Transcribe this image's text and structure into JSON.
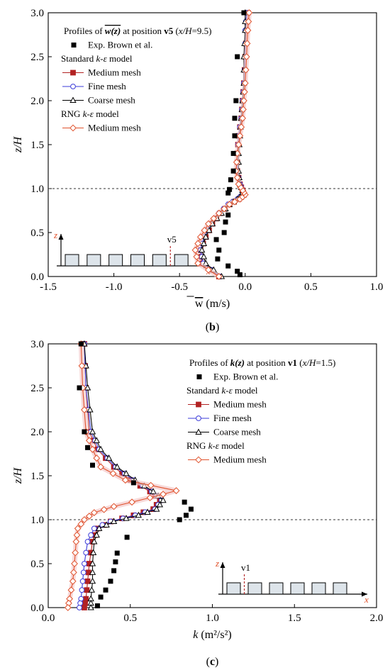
{
  "colors": {
    "standard_medium": "#b22222",
    "standard_fine": "#3b3bd9",
    "standard_coarse": "#000000",
    "rng_medium": "#e0522c",
    "experiment": "#000000",
    "sheet_fill": "#f4c9c9",
    "building_fill": "#dde4ea"
  },
  "chart_data": [
    {
      "panel_label": "(b)",
      "type": "line",
      "orientation": "profile: z/H vertical, quantity horizontal",
      "title_parts": [
        "Profiles of ",
        "w(z)",
        " at position ",
        "v5",
        " (",
        "x/H",
        "=9.5)"
      ],
      "xlabel": "w (m/s)",
      "xlabel_var": "w",
      "xlabel_unit": " (m/s)",
      "ylabel": "z/H",
      "xlim": [
        -1.5,
        1.0
      ],
      "ylim": [
        0.0,
        3.0
      ],
      "xticks": [
        -1.5,
        -1.0,
        -0.5,
        0.0,
        0.5,
        1.0
      ],
      "xtick_labels": [
        "-1.5",
        "-1.0",
        "-0.5",
        "0.0",
        "0.5",
        "1.0"
      ],
      "yticks": [
        0.0,
        0.5,
        1.0,
        1.5,
        2.0,
        2.5,
        3.0
      ],
      "ytick_labels": [
        "0.0",
        "0.5",
        "1.0",
        "1.5",
        "2.0",
        "2.5",
        "3.0"
      ],
      "reference_line_y": 1.0,
      "legend_position": "top-left",
      "legend": {
        "experiment": "Exp. Brown et al.",
        "group_standard": [
          "Standard ",
          "k-ε",
          " model"
        ],
        "group_rng": [
          "RNG ",
          "k-ε",
          " model"
        ],
        "entries": [
          "Medium mesh",
          "Fine mesh",
          "Coarse mesh",
          "Medium mesh"
        ]
      },
      "inset": {
        "x_label": "x",
        "z_label": "z",
        "position_label": "v5",
        "buildings": 6,
        "probe_after_building": 5
      },
      "experiment": {
        "name": "Exp. Brown et al.",
        "x": [
          -0.01,
          -0.06,
          -0.07,
          -0.08,
          -0.08,
          -0.09,
          -0.09,
          -0.11,
          -0.12,
          -0.13,
          -0.13,
          -0.15,
          -0.16,
          -0.22,
          -0.2,
          -0.21,
          -0.13,
          -0.06,
          -0.04
        ],
        "y": [
          3.0,
          2.5,
          2.0,
          1.8,
          1.6,
          1.4,
          1.2,
          1.1,
          0.99,
          0.95,
          0.7,
          0.62,
          0.5,
          0.42,
          0.3,
          0.2,
          0.12,
          0.06,
          0.02
        ]
      },
      "series": [
        {
          "name": "Medium mesh",
          "group": "Standard k-ε model",
          "marker": "square",
          "x": [
            -0.2,
            -0.33,
            -0.34,
            -0.3,
            -0.25,
            -0.19,
            -0.12,
            -0.05,
            -0.01,
            -0.02,
            -0.04,
            -0.06,
            -0.06,
            -0.05,
            -0.03,
            -0.02,
            -0.01,
            0.0,
            0.01,
            0.02
          ],
          "y": [
            0.0,
            0.15,
            0.3,
            0.45,
            0.6,
            0.72,
            0.82,
            0.88,
            0.93,
            0.98,
            1.05,
            1.2,
            1.4,
            1.6,
            1.8,
            2.0,
            2.2,
            2.5,
            2.8,
            3.0
          ]
        },
        {
          "name": "Fine mesh",
          "group": "Standard k-ε model",
          "marker": "circle",
          "x": [
            -0.19,
            -0.32,
            -0.34,
            -0.31,
            -0.26,
            -0.2,
            -0.13,
            -0.06,
            -0.02,
            -0.02,
            -0.04,
            -0.06,
            -0.06,
            -0.05,
            -0.03,
            -0.02,
            -0.01,
            0.0,
            0.0,
            0.01
          ],
          "y": [
            0.0,
            0.15,
            0.3,
            0.45,
            0.6,
            0.72,
            0.82,
            0.88,
            0.93,
            0.98,
            1.05,
            1.2,
            1.4,
            1.6,
            1.8,
            2.0,
            2.2,
            2.5,
            2.8,
            3.0
          ]
        },
        {
          "name": "Coarse mesh",
          "group": "Standard k-ε model",
          "marker": "triangle",
          "x": [
            -0.18,
            -0.3,
            -0.33,
            -0.3,
            -0.25,
            -0.18,
            -0.12,
            -0.06,
            -0.02,
            -0.02,
            -0.04,
            -0.05,
            -0.05,
            -0.04,
            -0.03,
            -0.02,
            -0.01,
            -0.01,
            0.0,
            0.0
          ],
          "y": [
            0.0,
            0.15,
            0.3,
            0.45,
            0.6,
            0.72,
            0.82,
            0.88,
            0.93,
            0.98,
            1.05,
            1.2,
            1.4,
            1.6,
            1.8,
            2.0,
            2.2,
            2.5,
            2.8,
            3.0
          ]
        },
        {
          "name": "Medium mesh",
          "group": "RNG k-ε model",
          "marker": "diamond",
          "x": [
            -0.2,
            -0.36,
            -0.38,
            -0.34,
            -0.28,
            -0.2,
            -0.12,
            -0.04,
            0.0,
            -0.02,
            -0.05,
            -0.07,
            -0.06,
            -0.04,
            -0.02,
            -0.01,
            0.0,
            0.01,
            0.02,
            0.03
          ],
          "y": [
            0.0,
            0.15,
            0.3,
            0.45,
            0.6,
            0.72,
            0.82,
            0.88,
            0.93,
            0.98,
            1.05,
            1.2,
            1.4,
            1.6,
            1.8,
            2.0,
            2.2,
            2.5,
            2.8,
            3.0
          ]
        }
      ]
    },
    {
      "panel_label": "(c)",
      "type": "line",
      "orientation": "profile: z/H vertical, quantity horizontal",
      "title_parts": [
        "Profiles of ",
        "k(z)",
        " at position ",
        "v1",
        " (",
        "x/H",
        "=1.5)"
      ],
      "xlabel": "k (m2/s2)",
      "xlabel_var": "k",
      "xlabel_unit": " (m²/s²)",
      "ylabel": "z/H",
      "xlim": [
        0.0,
        2.0
      ],
      "ylim": [
        0.0,
        3.0
      ],
      "xticks": [
        0.0,
        0.5,
        1.0,
        1.5,
        2.0
      ],
      "xtick_labels": [
        "0.0",
        "0.5",
        "1.0",
        "1.5",
        "2.0"
      ],
      "yticks": [
        0.0,
        0.5,
        1.0,
        1.5,
        2.0,
        2.5,
        3.0
      ],
      "ytick_labels": [
        "0.0",
        "0.5",
        "1.0",
        "1.5",
        "2.0",
        "2.5",
        "3.0"
      ],
      "reference_line_y": 1.0,
      "legend_position": "top-right",
      "legend": {
        "experiment": "Exp. Brown et al.",
        "group_standard": [
          "Standard ",
          "k-ε",
          " model"
        ],
        "group_rng": [
          "RNG ",
          "k-ε",
          " model"
        ],
        "entries": [
          "Medium mesh",
          "Fine mesh",
          "Coarse mesh",
          "Medium mesh"
        ]
      },
      "inset": {
        "x_label": "x",
        "z_label": "z",
        "position_label": "v1",
        "buildings": 6,
        "probe_after_building": 1
      },
      "experiment": {
        "name": "Exp. Brown et al.",
        "x": [
          0.2,
          0.19,
          0.22,
          0.24,
          0.27,
          0.52,
          0.83,
          0.87,
          0.84,
          0.8,
          0.48,
          0.42,
          0.41,
          0.4,
          0.38,
          0.35,
          0.32,
          0.3
        ],
        "y": [
          3.0,
          2.5,
          2.0,
          1.82,
          1.62,
          1.42,
          1.2,
          1.12,
          1.05,
          1.0,
          0.8,
          0.62,
          0.52,
          0.42,
          0.3,
          0.2,
          0.12,
          0.02
        ]
      },
      "series": [
        {
          "name": "Medium mesh",
          "group": "Standard k-ε model",
          "marker": "square",
          "x": [
            0.22,
            0.23,
            0.25,
            0.3,
            0.4,
            0.5,
            0.62,
            0.68,
            0.64,
            0.52,
            0.38,
            0.3,
            0.27,
            0.25,
            0.24,
            0.23,
            0.22
          ],
          "y": [
            3.0,
            2.5,
            2.0,
            1.8,
            1.6,
            1.45,
            1.32,
            1.22,
            1.12,
            1.05,
            0.98,
            0.9,
            0.75,
            0.5,
            0.3,
            0.1,
            0.0
          ]
        },
        {
          "name": "Fine mesh",
          "group": "Standard k-ε model",
          "marker": "circle",
          "x": [
            0.22,
            0.23,
            0.26,
            0.31,
            0.41,
            0.52,
            0.63,
            0.69,
            0.65,
            0.53,
            0.38,
            0.28,
            0.24,
            0.22,
            0.21,
            0.2,
            0.19
          ],
          "y": [
            3.0,
            2.5,
            2.0,
            1.8,
            1.6,
            1.45,
            1.32,
            1.22,
            1.12,
            1.05,
            0.98,
            0.9,
            0.75,
            0.5,
            0.3,
            0.1,
            0.0
          ]
        },
        {
          "name": "Coarse mesh",
          "group": "Standard k-ε model",
          "marker": "triangle",
          "x": [
            0.22,
            0.24,
            0.27,
            0.32,
            0.42,
            0.53,
            0.64,
            0.7,
            0.66,
            0.55,
            0.4,
            0.31,
            0.28,
            0.27,
            0.27,
            0.26,
            0.26
          ],
          "y": [
            3.0,
            2.5,
            2.0,
            1.8,
            1.6,
            1.45,
            1.32,
            1.22,
            1.12,
            1.05,
            0.98,
            0.9,
            0.75,
            0.5,
            0.3,
            0.1,
            0.0
          ]
        },
        {
          "name": "Medium mesh",
          "group": "RNG k-ε model",
          "marker": "diamond",
          "x": [
            0.2,
            0.21,
            0.23,
            0.27,
            0.32,
            0.47,
            0.78,
            0.62,
            0.4,
            0.28,
            0.22,
            0.18,
            0.17,
            0.16,
            0.15,
            0.13,
            0.12
          ],
          "y": [
            3.0,
            2.5,
            2.0,
            1.8,
            1.6,
            1.45,
            1.33,
            1.25,
            1.15,
            1.08,
            1.0,
            0.9,
            0.75,
            0.5,
            0.3,
            0.1,
            0.0
          ]
        }
      ]
    }
  ]
}
